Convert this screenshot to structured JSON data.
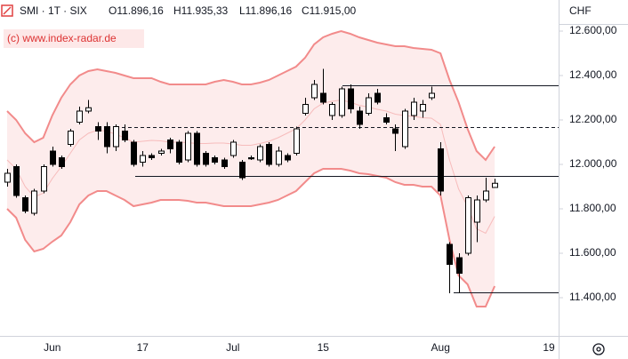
{
  "chart_data": {
    "type": "candlestick",
    "symbol": "SMI · 1T · SIX",
    "ohlc_text": [
      "O11.896,16",
      "H11.935,33",
      "L11.896,16",
      "C11.915,00"
    ],
    "watermark": "(c) www.index-radar.de",
    "currency": "CHF",
    "categories": [
      null,
      null,
      null,
      null,
      null,
      "Jun",
      null,
      null,
      null,
      null,
      null,
      null,
      null,
      null,
      null,
      "17",
      null,
      null,
      null,
      null,
      null,
      null,
      null,
      null,
      null,
      "Jul",
      null,
      null,
      null,
      null,
      null,
      null,
      null,
      null,
      null,
      "15",
      null,
      null,
      null,
      null,
      null,
      null,
      null,
      null,
      null,
      null,
      null,
      null,
      "Aug",
      null,
      null,
      null,
      null,
      null,
      null,
      null,
      null,
      null,
      null,
      null,
      "19"
    ],
    "open": [
      11920,
      11990,
      11850,
      11780,
      11880,
      12060,
      12030,
      12090,
      12190,
      12240,
      12170,
      12170,
      12080,
      12150,
      12100,
      12010,
      12040,
      12050,
      12110,
      12100,
      12020,
      12140,
      12050,
      12030,
      12020,
      12040,
      12010,
      12030,
      12020,
      12090,
      12000,
      12040,
      12050,
      12230,
      12300,
      12320,
      12220,
      12220,
      12340,
      12240,
      12230,
      12320,
      12210,
      12160,
      12080,
      12220,
      12240,
      12300,
      12070,
      11640,
      11580,
      11600,
      11740,
      11840,
      11896.16,
      null,
      null,
      null,
      null,
      null,
      null
    ],
    "high": [
      11980,
      12000,
      11860,
      11890,
      12000,
      12080,
      12040,
      12160,
      12260,
      12290,
      12190,
      12190,
      12180,
      12180,
      12110,
      12060,
      12050,
      12070,
      12120,
      12110,
      12150,
      12150,
      12060,
      12040,
      12030,
      12110,
      12020,
      12040,
      12090,
      12100,
      12080,
      12050,
      12170,
      12300,
      12380,
      12430,
      12280,
      12350,
      12360,
      12260,
      12320,
      12340,
      12230,
      12180,
      12250,
      12300,
      12290,
      12350,
      12100,
      11650,
      11600,
      11860,
      11860,
      11940,
      11935.33,
      null,
      null,
      null,
      null,
      null,
      null
    ],
    "low": [
      11900,
      11850,
      11780,
      11770,
      11870,
      11990,
      11980,
      12080,
      12180,
      12230,
      12110,
      12050,
      12060,
      12100,
      11990,
      11990,
      12020,
      12040,
      12050,
      12000,
      12010,
      11990,
      11990,
      12000,
      11980,
      12030,
      11930,
      12020,
      12010,
      11990,
      11990,
      12010,
      12040,
      12220,
      12290,
      12270,
      12200,
      12210,
      12230,
      12160,
      12220,
      12270,
      12180,
      12060,
      12070,
      12200,
      12210,
      12290,
      11860,
      11420,
      11420,
      11590,
      11650,
      11830,
      11896.16,
      null,
      null,
      null,
      null,
      null,
      null
    ],
    "close": [
      11960,
      11860,
      11790,
      11880,
      11990,
      12000,
      11990,
      12150,
      12240,
      12255,
      12150,
      12080,
      12170,
      12110,
      12000,
      12040,
      12030,
      12060,
      12070,
      12010,
      12140,
      12000,
      12000,
      12010,
      11990,
      12100,
      11940,
      12025,
      12080,
      12000,
      12060,
      12020,
      12160,
      12270,
      12360,
      12280,
      12270,
      12340,
      12250,
      12180,
      12300,
      12280,
      12190,
      12140,
      12240,
      12280,
      12270,
      12320,
      11880,
      11550,
      11510,
      11850,
      11840,
      11880,
      11915,
      null,
      null,
      null,
      null,
      null,
      null
    ],
    "up_color": "#ffffff",
    "down_color": "#000000",
    "bands": {
      "color": "#f28b8b",
      "upper": [
        12240,
        12200,
        12140,
        12100,
        12120,
        12220,
        12300,
        12360,
        12400,
        12420,
        12428,
        12420,
        12412,
        12400,
        12388,
        12388,
        12388,
        12372,
        12360,
        12360,
        12360,
        12360,
        12360,
        12372,
        12380,
        12372,
        12360,
        12360,
        12368,
        12380,
        12400,
        12420,
        12440,
        12480,
        12540,
        12572,
        12588,
        12600,
        12588,
        12572,
        12560,
        12548,
        12540,
        12532,
        12532,
        12524,
        12520,
        12516,
        12500,
        12380,
        12280,
        12160,
        12060,
        12020,
        12080,
        null,
        null,
        null,
        null,
        null,
        null
      ],
      "middle": [
        12020,
        11980,
        11900,
        11854,
        11870,
        11936,
        11990,
        12050,
        12110,
        12140,
        12154,
        12150,
        12136,
        12120,
        12100,
        12104,
        12108,
        12106,
        12100,
        12100,
        12098,
        12094,
        12094,
        12096,
        12096,
        12092,
        12086,
        12086,
        12094,
        12104,
        12120,
        12140,
        12160,
        12200,
        12250,
        12276,
        12284,
        12290,
        12280,
        12266,
        12258,
        12248,
        12240,
        12226,
        12220,
        12216,
        12210,
        12208,
        12180,
        12020,
        11890,
        11810,
        11710,
        11690,
        11766,
        null,
        null,
        null,
        null,
        null,
        null
      ],
      "lower": [
        11800,
        11760,
        11660,
        11608,
        11620,
        11652,
        11680,
        11740,
        11820,
        11860,
        11880,
        11880,
        11860,
        11840,
        11812,
        11820,
        11828,
        11840,
        11840,
        11840,
        11836,
        11828,
        11828,
        11820,
        11812,
        11812,
        11812,
        11812,
        11820,
        11828,
        11840,
        11860,
        11880,
        11920,
        11960,
        11980,
        11980,
        11980,
        11972,
        11960,
        11956,
        11948,
        11940,
        11920,
        11908,
        11908,
        11900,
        11900,
        11860,
        11660,
        11500,
        11460,
        11360,
        11360,
        11452,
        null,
        null,
        null,
        null,
        null,
        null
      ]
    },
    "hlines": [
      {
        "value": 12356,
        "dashed": false
      },
      {
        "value": 12168,
        "dashed": true
      },
      {
        "value": 11948,
        "dashed": false
      },
      {
        "value": 11424,
        "dashed": false
      }
    ],
    "ylim": [
      11228,
      12740
    ],
    "yticks": [
      {
        "value": 11400,
        "label": "11.400,00"
      },
      {
        "value": 11600,
        "label": "11.600,00"
      },
      {
        "value": 11800,
        "label": "11.800,00"
      },
      {
        "value": 12000,
        "label": "12.000,00"
      },
      {
        "value": 12200,
        "label": "12.200,00"
      },
      {
        "value": 12400,
        "label": "12.400,00"
      },
      {
        "value": 12600,
        "label": "12.600,00"
      }
    ]
  }
}
